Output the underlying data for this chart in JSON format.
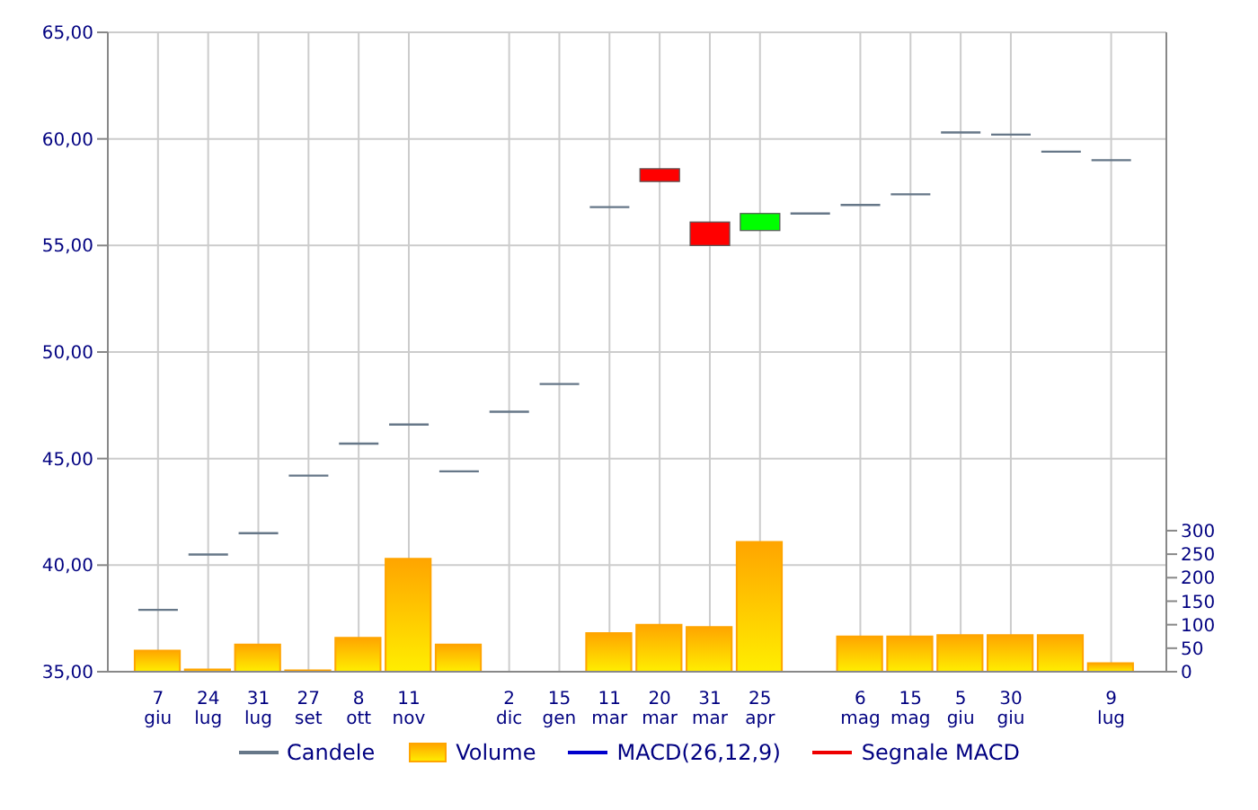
{
  "chart_data": {
    "type": "candlestick",
    "categories": [
      "7 giu",
      "24 lug",
      "31 lug",
      "27 set",
      "8 ott",
      "11 nov",
      null,
      "2 dic",
      "15 gen",
      "11 mar",
      "20 mar",
      "31 mar",
      "25 apr",
      null,
      "6 mag",
      "15 mag",
      "5 giu",
      "30 giu",
      null,
      "9 lug"
    ],
    "series": [
      {
        "name": "Candele",
        "color": "#667788",
        "ohlc": [
          [
            37.9,
            37.9,
            37.9,
            37.9
          ],
          [
            40.5,
            40.5,
            40.5,
            40.5
          ],
          [
            41.5,
            41.5,
            41.5,
            41.5
          ],
          [
            44.2,
            44.2,
            44.2,
            44.2
          ],
          [
            45.7,
            45.7,
            45.7,
            45.7
          ],
          [
            46.6,
            46.6,
            46.6,
            46.6
          ],
          [
            44.4,
            44.4,
            44.4,
            44.4
          ],
          [
            47.2,
            47.2,
            47.2,
            47.2
          ],
          [
            48.5,
            48.5,
            48.5,
            48.5
          ],
          [
            56.8,
            56.8,
            56.8,
            56.8
          ],
          [
            58.6,
            58.6,
            58.0,
            58.0
          ],
          [
            56.1,
            56.1,
            55.0,
            55.0
          ],
          [
            55.7,
            56.5,
            55.7,
            56.5
          ],
          [
            56.5,
            56.5,
            56.5,
            56.5
          ],
          [
            56.9,
            56.9,
            56.9,
            56.9
          ],
          [
            57.4,
            57.4,
            57.4,
            57.4
          ],
          [
            60.3,
            60.3,
            60.3,
            60.3
          ],
          [
            60.2,
            60.2,
            60.2,
            60.2
          ],
          [
            59.4,
            59.4,
            59.4,
            59.4
          ],
          [
            59.0,
            59.0,
            59.0,
            59.0
          ]
        ],
        "colors": [
          "#667788",
          "#667788",
          "#667788",
          "#667788",
          "#667788",
          "#667788",
          "#667788",
          "#667788",
          "#667788",
          "#667788",
          "#ff0000",
          "#ff0000",
          "#00ff00",
          "#667788",
          "#667788",
          "#667788",
          "#667788",
          "#667788",
          "#667788",
          "#667788"
        ]
      },
      {
        "name": "Volume",
        "type": "bar",
        "axis": "y2",
        "color": "#ffa500",
        "values": [
          45,
          5,
          58,
          3,
          72,
          240,
          58,
          null,
          null,
          82,
          100,
          95,
          276,
          null,
          75,
          75,
          78,
          78,
          78,
          18
        ]
      },
      {
        "name": "MACD(26,12,9)",
        "type": "line",
        "color": "#0000cc",
        "values": [
          null,
          null,
          null,
          null,
          null,
          null,
          null,
          null,
          null,
          null,
          null,
          null,
          null,
          null,
          null,
          null,
          null,
          null,
          null,
          null
        ]
      },
      {
        "name": "Segnale MACD",
        "type": "line",
        "color": "#ee0000",
        "values": [
          null,
          null,
          null,
          null,
          null,
          null,
          null,
          null,
          null,
          null,
          null,
          null,
          null,
          null,
          null,
          null,
          null,
          null,
          null,
          null
        ]
      }
    ],
    "ylim": [
      35,
      65
    ],
    "yticks": [
      {
        "value": 35,
        "label": "35,00"
      },
      {
        "value": 40,
        "label": "40,00"
      },
      {
        "value": 45,
        "label": "45,00"
      },
      {
        "value": 50,
        "label": "50,00"
      },
      {
        "value": 55,
        "label": "55,00"
      },
      {
        "value": 60,
        "label": "60,00"
      },
      {
        "value": 65,
        "label": "65,00"
      }
    ],
    "y2lim": [
      0,
      1360
    ],
    "y2ticks": [
      0,
      50,
      100,
      150,
      200,
      250,
      300
    ],
    "grid": true,
    "legend": "bottom"
  }
}
